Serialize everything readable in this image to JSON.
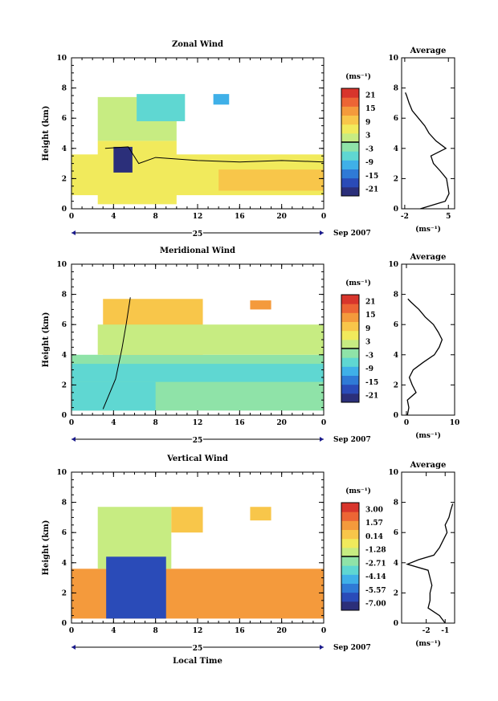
{
  "figure": {
    "colormap": [
      "#2b2f7a",
      "#2a4bb8",
      "#2f7ad6",
      "#3fb0e8",
      "#5fd7d2",
      "#8fe3a8",
      "#c7ec82",
      "#f1ea5c",
      "#f8c64a",
      "#f49a3c",
      "#ec6535",
      "#d8352c"
    ],
    "xlabel": "Local Time",
    "date_label": "Sep 2007",
    "day_label": "25"
  },
  "chart_data": [
    {
      "type": "heatmap",
      "title": "Zonal Wind",
      "ylabel": "Height (km)",
      "xlim": [
        0,
        24
      ],
      "ylim": [
        0,
        10
      ],
      "xticks": [
        "0",
        "4",
        "8",
        "12",
        "16",
        "20",
        "0"
      ],
      "yticks": [
        "0",
        "2",
        "4",
        "6",
        "8",
        "10"
      ],
      "colorbar": {
        "label": "(ms⁻¹)",
        "ticks": [
          "21",
          "15",
          "9",
          "3",
          "-3",
          "-9",
          "-15",
          "-21"
        ],
        "range": [
          -24,
          24
        ]
      },
      "regions": [
        {
          "x": [
            0,
            24
          ],
          "y": [
            0.9,
            3.6
          ],
          "value": 5
        },
        {
          "x": [
            2.5,
            10.0
          ],
          "y": [
            0.3,
            4.5
          ],
          "value": 6
        },
        {
          "x": [
            2.5,
            10.0
          ],
          "y": [
            4.5,
            7.4
          ],
          "value": 0
        },
        {
          "x": [
            6.2,
            10.8
          ],
          "y": [
            5.8,
            7.6
          ],
          "value": -8
        },
        {
          "x": [
            14.0,
            24.0
          ],
          "y": [
            1.2,
            2.6
          ],
          "value": 11
        },
        {
          "x": [
            4.0,
            5.8
          ],
          "y": [
            2.4,
            4.1
          ],
          "value": -22
        },
        {
          "x": [
            13.5,
            15.0
          ],
          "y": [
            6.9,
            7.6
          ],
          "value": -9
        }
      ],
      "zero_contour": [
        [
          3.2,
          4.0
        ],
        [
          5.4,
          4.1
        ],
        [
          6.4,
          3.0
        ],
        [
          8.0,
          3.4
        ],
        [
          12.0,
          3.2
        ],
        [
          16.0,
          3.1
        ],
        [
          20.0,
          3.2
        ],
        [
          24.0,
          3.1
        ]
      ],
      "profile": {
        "title": "Average",
        "xlim": [
          -2.5,
          6
        ],
        "xticks": [
          "-2",
          "5"
        ],
        "xtick_values": [
          -2,
          5
        ],
        "xlabel": "(ms⁻¹)",
        "height": [
          0.0,
          0.5,
          1.0,
          1.5,
          2.0,
          2.5,
          3.0,
          3.5,
          4.0,
          4.5,
          5.0,
          5.5,
          6.0,
          6.5,
          7.0,
          7.5,
          7.7
        ],
        "value": [
          0.5,
          4.5,
          5.1,
          4.9,
          4.7,
          3.7,
          2.6,
          2.2,
          4.6,
          3.0,
          1.9,
          1.2,
          0.2,
          -0.8,
          -1.3,
          -1.7,
          -1.9
        ]
      }
    },
    {
      "type": "heatmap",
      "title": "Meridional Wind",
      "ylabel": "Height (km)",
      "xlim": [
        0,
        24
      ],
      "ylim": [
        0,
        10
      ],
      "xticks": [
        "0",
        "4",
        "8",
        "12",
        "16",
        "20",
        "0"
      ],
      "yticks": [
        "0",
        "2",
        "4",
        "6",
        "8",
        "10"
      ],
      "colorbar": {
        "label": "(ms⁻¹)",
        "ticks": [
          "21",
          "15",
          "9",
          "3",
          "-3",
          "-9",
          "-15",
          "-21"
        ],
        "range": [
          -24,
          24
        ]
      },
      "regions": [
        {
          "x": [
            0,
            24
          ],
          "y": [
            0.3,
            4.0
          ],
          "value": -2
        },
        {
          "x": [
            3.0,
            12.5
          ],
          "y": [
            4.0,
            7.7
          ],
          "value": 9
        },
        {
          "x": [
            2.5,
            24.0
          ],
          "y": [
            4.0,
            6.0
          ],
          "value": 2
        },
        {
          "x": [
            0,
            24
          ],
          "y": [
            2.2,
            3.4
          ],
          "value": -5
        },
        {
          "x": [
            0,
            8.0
          ],
          "y": [
            0.3,
            2.2
          ],
          "value": -6
        },
        {
          "x": [
            17.0,
            19.0
          ],
          "y": [
            7.0,
            7.6
          ],
          "value": 13
        }
      ],
      "zero_contour": [
        [
          3.0,
          0.4
        ],
        [
          4.2,
          2.4
        ],
        [
          4.8,
          4.4
        ],
        [
          5.2,
          6.0
        ],
        [
          5.6,
          7.8
        ]
      ],
      "profile": {
        "title": "Average",
        "xlim": [
          -1,
          10
        ],
        "xticks": [
          "0",
          "10"
        ],
        "xtick_values": [
          0,
          10
        ],
        "xlabel": "(ms⁻¹)",
        "height": [
          0.0,
          0.5,
          1.0,
          1.5,
          2.0,
          2.5,
          3.0,
          3.5,
          4.0,
          4.5,
          5.0,
          5.5,
          6.0,
          6.5,
          7.0,
          7.5,
          7.7
        ],
        "value": [
          0.2,
          0.5,
          0.2,
          2.0,
          1.2,
          0.6,
          1.4,
          3.5,
          5.8,
          6.8,
          7.4,
          6.6,
          5.6,
          3.9,
          2.6,
          0.9,
          0.3
        ]
      }
    },
    {
      "type": "heatmap",
      "title": "Vertical Wind",
      "ylabel": "Height (km)",
      "xlim": [
        0,
        24
      ],
      "ylim": [
        0,
        10
      ],
      "xticks": [
        "0",
        "4",
        "8",
        "12",
        "16",
        "20",
        "0"
      ],
      "yticks": [
        "0",
        "2",
        "4",
        "6",
        "8",
        "10"
      ],
      "colorbar": {
        "label": "(ms⁻¹)",
        "ticks": [
          "3.00",
          "1.57",
          "0.14",
          "-1.28",
          "-2.71",
          "-4.14",
          "-5.57",
          "-7.00"
        ],
        "range": [
          -8,
          4
        ]
      },
      "regions": [
        {
          "x": [
            0,
            24
          ],
          "y": [
            0.3,
            3.6
          ],
          "value": 1.0
        },
        {
          "x": [
            2.5,
            9.5
          ],
          "y": [
            3.6,
            7.7
          ],
          "value": -2.0
        },
        {
          "x": [
            3.3,
            9.0
          ],
          "y": [
            0.3,
            4.4
          ],
          "value": -7.0
        },
        {
          "x": [
            9.5,
            12.5
          ],
          "y": [
            6.0,
            7.7
          ],
          "value": 0.5
        },
        {
          "x": [
            17.0,
            19.0
          ],
          "y": [
            6.8,
            7.7
          ],
          "value": 0.3
        }
      ],
      "zero_contour": [],
      "profile": {
        "title": "Average",
        "xlim": [
          -3.3,
          -0.5
        ],
        "xticks": [
          "-2",
          "-1"
        ],
        "xtick_values": [
          -2,
          -1
        ],
        "xlabel": "(ms⁻¹)",
        "height": [
          0.0,
          0.5,
          1.0,
          1.5,
          2.0,
          2.5,
          3.0,
          3.5,
          3.9,
          4.2,
          4.5,
          5.0,
          5.5,
          6.0,
          6.5,
          7.0,
          7.5,
          7.9
        ],
        "value": [
          -1.0,
          -1.3,
          -1.9,
          -1.8,
          -1.8,
          -1.7,
          -1.8,
          -1.9,
          -3.0,
          -2.4,
          -1.6,
          -1.3,
          -1.1,
          -0.9,
          -1.0,
          -0.8,
          -0.7,
          -0.6
        ]
      }
    }
  ]
}
